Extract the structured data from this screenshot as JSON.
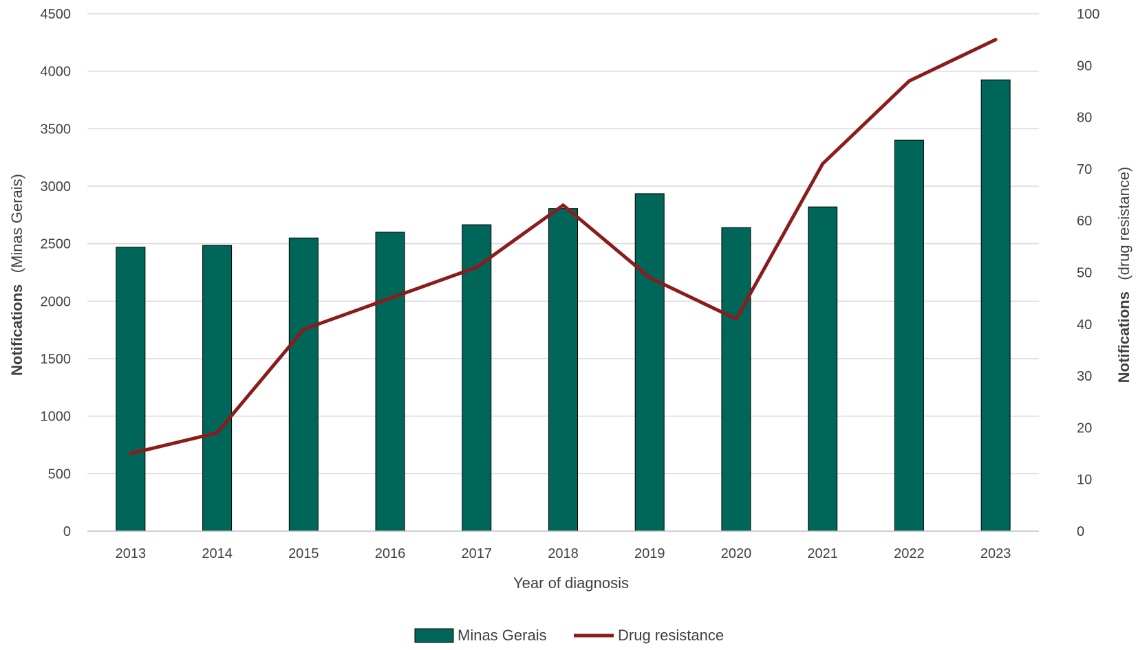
{
  "chart_data": {
    "type": "bar",
    "categories": [
      "2013",
      "2014",
      "2015",
      "2016",
      "2017",
      "2018",
      "2019",
      "2020",
      "2021",
      "2022",
      "2023"
    ],
    "series": [
      {
        "name": "Minas Gerais",
        "type": "bar",
        "axis": "left",
        "color": "#00665a",
        "values": [
          2470,
          2485,
          2550,
          2600,
          2665,
          2805,
          2935,
          2640,
          2820,
          3400,
          3925
        ]
      },
      {
        "name": "Drug resistance",
        "type": "line",
        "axis": "right",
        "color": "#8b1c1c",
        "values": [
          15,
          19,
          39,
          45,
          51,
          63,
          49,
          41,
          71,
          87,
          95
        ]
      }
    ],
    "xlabel": "Year of diagnosis",
    "ylabel": {
      "bold": "Notifications",
      "rest": "(Minas Gerais)"
    },
    "y2label": {
      "bold": "Notifications",
      "rest": "(drug resistance)"
    },
    "ylim": [
      0,
      4500
    ],
    "y2lim": [
      0,
      100
    ],
    "yticks": [
      0,
      500,
      1000,
      1500,
      2000,
      2500,
      3000,
      3500,
      4000,
      4500
    ],
    "y2ticks": [
      0,
      10,
      20,
      30,
      40,
      50,
      60,
      70,
      80,
      90,
      100
    ],
    "grid": true,
    "legend_position": "bottom-center"
  }
}
